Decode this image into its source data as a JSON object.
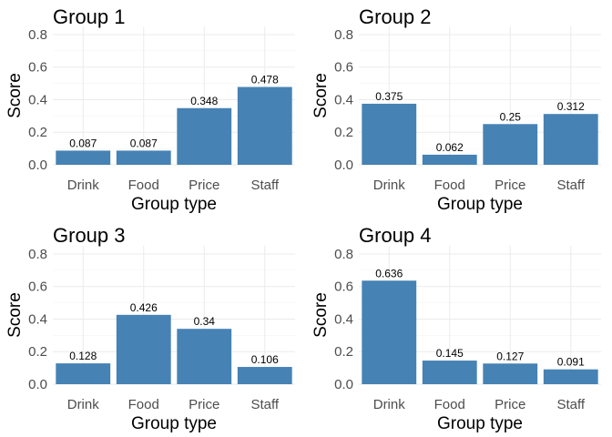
{
  "chart_data": [
    {
      "type": "bar",
      "title": "Group 1",
      "xlabel": "Group type",
      "ylabel": "Score",
      "categories": [
        "Drink",
        "Food",
        "Price",
        "Staff"
      ],
      "values": [
        0.087,
        0.087,
        0.348,
        0.478
      ],
      "value_labels": [
        "0.087",
        "0.087",
        "0.348",
        "0.478"
      ],
      "ylim": [
        0,
        0.85
      ],
      "yticks": [
        0,
        0.2,
        0.4,
        0.6,
        0.8
      ],
      "ytick_labels": [
        "0.0",
        "0.2",
        "0.4",
        "0.6",
        "0.8"
      ],
      "bar_color": "#4682b4",
      "grid": true
    },
    {
      "type": "bar",
      "title": "Group 2",
      "xlabel": "Group type",
      "ylabel": "Score",
      "categories": [
        "Drink",
        "Food",
        "Price",
        "Staff"
      ],
      "values": [
        0.375,
        0.062,
        0.25,
        0.312
      ],
      "value_labels": [
        "0.375",
        "0.062",
        "0.25",
        "0.312"
      ],
      "ylim": [
        0,
        0.85
      ],
      "yticks": [
        0,
        0.2,
        0.4,
        0.6,
        0.8
      ],
      "ytick_labels": [
        "0.0",
        "0.2",
        "0.4",
        "0.6",
        "0.8"
      ],
      "bar_color": "#4682b4",
      "grid": true
    },
    {
      "type": "bar",
      "title": "Group 3",
      "xlabel": "Group type",
      "ylabel": "Score",
      "categories": [
        "Drink",
        "Food",
        "Price",
        "Staff"
      ],
      "values": [
        0.128,
        0.426,
        0.34,
        0.106
      ],
      "value_labels": [
        "0.128",
        "0.426",
        "0.34",
        "0.106"
      ],
      "ylim": [
        0,
        0.85
      ],
      "yticks": [
        0,
        0.2,
        0.4,
        0.6,
        0.8
      ],
      "ytick_labels": [
        "0.0",
        "0.2",
        "0.4",
        "0.6",
        "0.8"
      ],
      "bar_color": "#4682b4",
      "grid": true
    },
    {
      "type": "bar",
      "title": "Group 4",
      "xlabel": "Group type",
      "ylabel": "Score",
      "categories": [
        "Drink",
        "Food",
        "Price",
        "Staff"
      ],
      "values": [
        0.636,
        0.145,
        0.127,
        0.091
      ],
      "value_labels": [
        "0.636",
        "0.145",
        "0.127",
        "0.091"
      ],
      "ylim": [
        0,
        0.85
      ],
      "yticks": [
        0,
        0.2,
        0.4,
        0.6,
        0.8
      ],
      "ytick_labels": [
        "0.0",
        "0.2",
        "0.4",
        "0.6",
        "0.8"
      ],
      "bar_color": "#4682b4",
      "grid": true
    }
  ]
}
